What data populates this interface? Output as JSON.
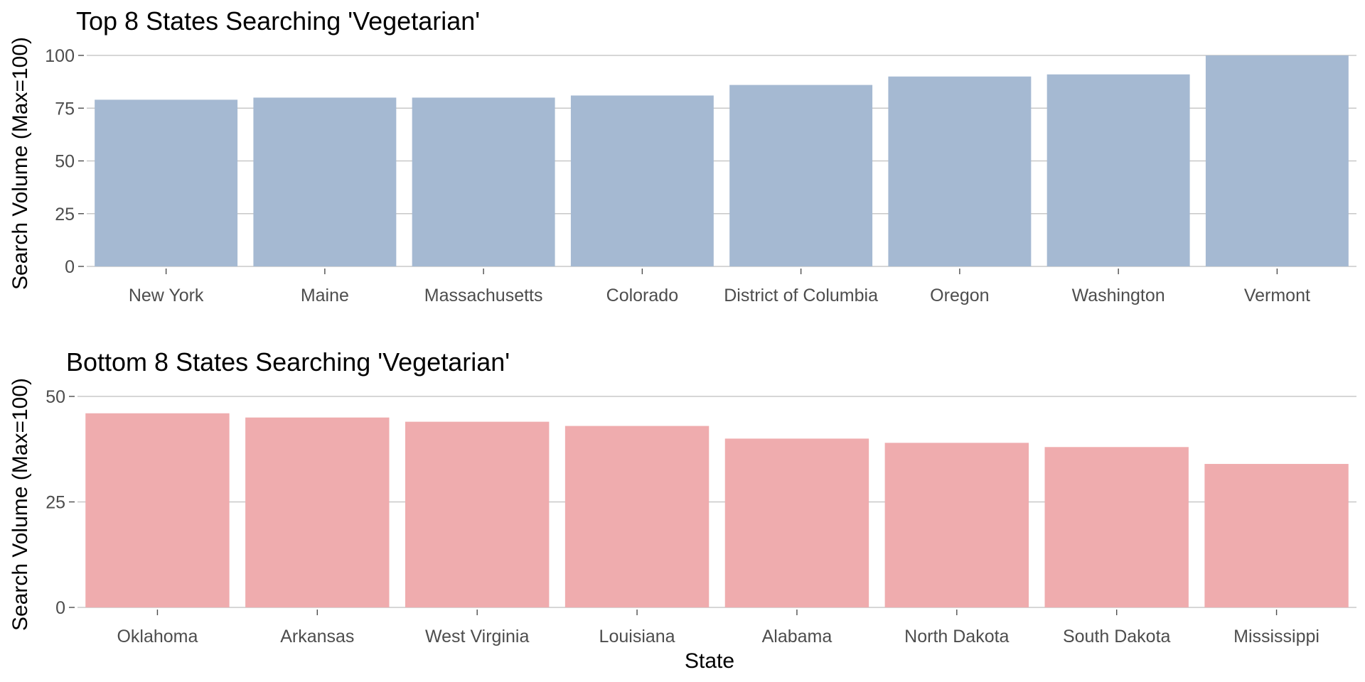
{
  "chart_data": [
    {
      "type": "bar",
      "title": "Top 8 States Searching 'Vegetarian'",
      "ylabel": "Search Volume (Max=100)",
      "xlabel": "",
      "categories": [
        "New York",
        "Maine",
        "Massachusetts",
        "Colorado",
        "District of Columbia",
        "Oregon",
        "Washington",
        "Vermont"
      ],
      "values": [
        79,
        80,
        80,
        81,
        86,
        90,
        91,
        100
      ],
      "ylim": [
        0,
        100
      ],
      "yticks": [
        0,
        25,
        50,
        75,
        100
      ],
      "color": "#a5b9d2",
      "grid": true
    },
    {
      "type": "bar",
      "title": "Bottom 8 States Searching 'Vegetarian'",
      "ylabel": "Search Volume (Max=100)",
      "xlabel": "State",
      "categories": [
        "Oklahoma",
        "Arkansas",
        "West Virginia",
        "Louisiana",
        "Alabama",
        "North Dakota",
        "South Dakota",
        "Mississippi"
      ],
      "values": [
        46,
        45,
        44,
        43,
        40,
        39,
        38,
        34
      ],
      "ylim": [
        0,
        50
      ],
      "yticks": [
        0,
        25,
        50
      ],
      "color": "#efacae",
      "grid": true
    }
  ]
}
